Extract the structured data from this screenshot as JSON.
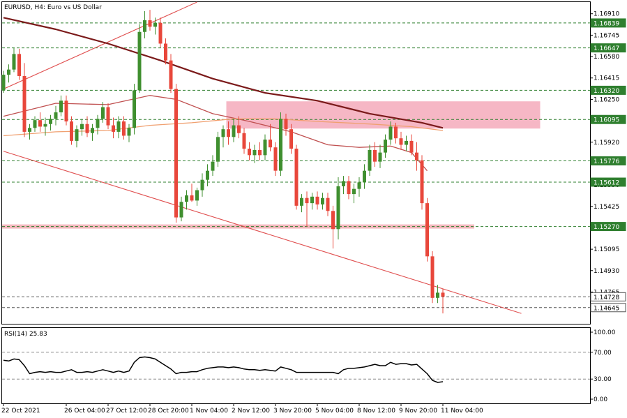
{
  "chart_data": {
    "type": "candlestick",
    "symbol": "EURUSD",
    "timeframe": "H4",
    "title": "EURUSD, H4:  Euro vs US Dollar",
    "colors": {
      "bull": "#3f8f2f",
      "bear": "#e8473b",
      "ma_slow": "#7b1a1a",
      "ma_mid": "#c05050",
      "ma_fast": "#f0a070",
      "trend_line": "#e05050",
      "level_line": "#2f7f2f",
      "level_tag": "#2f7f2f",
      "zone": "#f4aabb",
      "zone_line": "#f0a0a8",
      "rsi_line": "#000000"
    },
    "y_axis": {
      "min": 1.1452,
      "max": 1.17,
      "ticks": [
        "1.16910",
        "1.16745",
        "1.16580",
        "1.16415",
        "1.16250",
        "1.15920",
        "1.15590",
        "1.15425",
        "1.15095",
        "1.14930",
        "1.14765"
      ]
    },
    "levels": [
      {
        "value": 1.16839,
        "label": "1.16839"
      },
      {
        "value": 1.16647,
        "label": "1.16647"
      },
      {
        "value": 1.1632,
        "label": "1.16320"
      },
      {
        "value": 1.16095,
        "label": "1.16095"
      },
      {
        "value": 1.15776,
        "label": "1.15776"
      },
      {
        "value": 1.15612,
        "label": "1.15612"
      },
      {
        "value": 1.1527,
        "label": "1.15270"
      },
      {
        "value": 1.14728,
        "label": "1.14728"
      },
      {
        "value": 1.14645,
        "label": "1.14645"
      }
    ],
    "resistance_zone": {
      "from_bar": 43,
      "to_bar": 103,
      "low": 1.16025,
      "high": 1.16235
    },
    "support_line": {
      "from_bar": 0,
      "to_bar": 90,
      "value": 1.1527
    },
    "trend_lines": [
      {
        "x1": 0,
        "y1": 1.1633,
        "x2": 37,
        "y2": 1.17
      },
      {
        "x1": 0,
        "y1": 1.1585,
        "x2": 99,
        "y2": 1.146
      }
    ],
    "candles": [
      [
        1.1632,
        1.1647,
        1.163,
        1.1644
      ],
      [
        1.1644,
        1.1652,
        1.1638,
        1.1648
      ],
      [
        1.1648,
        1.1665,
        1.1646,
        1.166
      ],
      [
        1.166,
        1.1664,
        1.164,
        1.1643
      ],
      [
        1.1643,
        1.1653,
        1.1596,
        1.16
      ],
      [
        1.16,
        1.1606,
        1.1594,
        1.1603
      ],
      [
        1.1603,
        1.1612,
        1.16,
        1.1609
      ],
      [
        1.1609,
        1.1615,
        1.16,
        1.1604
      ],
      [
        1.1604,
        1.1611,
        1.1597,
        1.1606
      ],
      [
        1.1606,
        1.1613,
        1.1601,
        1.161
      ],
      [
        1.161,
        1.162,
        1.1605,
        1.1615
      ],
      [
        1.1615,
        1.1628,
        1.1612,
        1.1624
      ],
      [
        1.1624,
        1.1628,
        1.1605,
        1.1608
      ],
      [
        1.1608,
        1.1612,
        1.159,
        1.1593
      ],
      [
        1.1593,
        1.1605,
        1.1588,
        1.1602
      ],
      [
        1.1602,
        1.161,
        1.1597,
        1.1606
      ],
      [
        1.1606,
        1.1612,
        1.1596,
        1.1599
      ],
      [
        1.1599,
        1.1606,
        1.1593,
        1.1603
      ],
      [
        1.1603,
        1.1613,
        1.1598,
        1.161
      ],
      [
        1.161,
        1.1623,
        1.1607,
        1.1619
      ],
      [
        1.1619,
        1.1622,
        1.1602,
        1.1605
      ],
      [
        1.1605,
        1.1611,
        1.1595,
        1.16
      ],
      [
        1.16,
        1.1612,
        1.1595,
        1.1608
      ],
      [
        1.1608,
        1.1612,
        1.1594,
        1.1597
      ],
      [
        1.1597,
        1.1606,
        1.1592,
        1.1603
      ],
      [
        1.1603,
        1.1637,
        1.1598,
        1.1632
      ],
      [
        1.1632,
        1.1683,
        1.163,
        1.1677
      ],
      [
        1.1677,
        1.1693,
        1.1672,
        1.1686
      ],
      [
        1.1686,
        1.1694,
        1.1678,
        1.1681
      ],
      [
        1.1681,
        1.1688,
        1.1675,
        1.1684
      ],
      [
        1.1684,
        1.1688,
        1.1665,
        1.1668
      ],
      [
        1.1668,
        1.1672,
        1.1652,
        1.1655
      ],
      [
        1.1655,
        1.166,
        1.163,
        1.1633
      ],
      [
        1.1633,
        1.1637,
        1.153,
        1.1534
      ],
      [
        1.1534,
        1.155,
        1.1531,
        1.1546
      ],
      [
        1.1546,
        1.1555,
        1.154,
        1.1551
      ],
      [
        1.1551,
        1.156,
        1.1546,
        1.1547
      ],
      [
        1.1547,
        1.1557,
        1.1543,
        1.1555
      ],
      [
        1.1555,
        1.1568,
        1.155,
        1.1563
      ],
      [
        1.1563,
        1.1575,
        1.1558,
        1.157
      ],
      [
        1.157,
        1.1582,
        1.1566,
        1.1577
      ],
      [
        1.1577,
        1.16,
        1.1573,
        1.1596
      ],
      [
        1.1596,
        1.1605,
        1.1588,
        1.1602
      ],
      [
        1.1602,
        1.1608,
        1.159,
        1.1596
      ],
      [
        1.1596,
        1.161,
        1.1592,
        1.1605
      ],
      [
        1.1605,
        1.1612,
        1.1595,
        1.1599
      ],
      [
        1.1599,
        1.1603,
        1.1583,
        1.1587
      ],
      [
        1.1587,
        1.1592,
        1.1578,
        1.1582
      ],
      [
        1.1582,
        1.159,
        1.1576,
        1.1586
      ],
      [
        1.1586,
        1.1592,
        1.1578,
        1.1582
      ],
      [
        1.1582,
        1.1598,
        1.1578,
        1.1594
      ],
      [
        1.1594,
        1.1606,
        1.1585,
        1.1588
      ],
      [
        1.1588,
        1.1592,
        1.1566,
        1.157
      ],
      [
        1.157,
        1.1615,
        1.1566,
        1.161
      ],
      [
        1.161,
        1.1614,
        1.1597,
        1.1602
      ],
      [
        1.1602,
        1.1606,
        1.1583,
        1.1587
      ],
      [
        1.1587,
        1.159,
        1.154,
        1.1543
      ],
      [
        1.1543,
        1.1552,
        1.1538,
        1.1549
      ],
      [
        1.1549,
        1.1554,
        1.1527,
        1.1545
      ],
      [
        1.1545,
        1.1553,
        1.154,
        1.155
      ],
      [
        1.155,
        1.1554,
        1.154,
        1.1544
      ],
      [
        1.1544,
        1.1553,
        1.154,
        1.1549
      ],
      [
        1.1549,
        1.1553,
        1.1535,
        1.1539
      ],
      [
        1.1539,
        1.1543,
        1.151,
        1.1525
      ],
      [
        1.1525,
        1.1565,
        1.1517,
        1.1558
      ],
      [
        1.1558,
        1.1566,
        1.1552,
        1.1562
      ],
      [
        1.1562,
        1.1566,
        1.1548,
        1.1552
      ],
      [
        1.1552,
        1.156,
        1.1545,
        1.1556
      ],
      [
        1.1556,
        1.1565,
        1.155,
        1.1561
      ],
      [
        1.1561,
        1.1575,
        1.1556,
        1.157
      ],
      [
        1.157,
        1.159,
        1.1566,
        1.1586
      ],
      [
        1.1586,
        1.1592,
        1.1573,
        1.1577
      ],
      [
        1.1577,
        1.159,
        1.1572,
        1.1584
      ],
      [
        1.1584,
        1.1598,
        1.158,
        1.1594
      ],
      [
        1.1594,
        1.1608,
        1.159,
        1.1604
      ],
      [
        1.1604,
        1.1607,
        1.1591,
        1.1595
      ],
      [
        1.1595,
        1.16,
        1.1586,
        1.159
      ],
      [
        1.159,
        1.1597,
        1.1585,
        1.1593
      ],
      [
        1.1593,
        1.1598,
        1.1582,
        1.1584
      ],
      [
        1.1584,
        1.1592,
        1.157,
        1.1578
      ],
      [
        1.1578,
        1.1582,
        1.154,
        1.1545
      ],
      [
        1.1545,
        1.1549,
        1.15,
        1.1504
      ],
      [
        1.1504,
        1.1508,
        1.1468,
        1.1472
      ],
      [
        1.1472,
        1.1482,
        1.1468,
        1.1476
      ],
      [
        1.1476,
        1.1479,
        1.146,
        1.1473
      ]
    ],
    "moving_averages": [
      {
        "name": "ma_slow",
        "color_key": "ma_slow",
        "width": 2.2,
        "points": [
          [
            0,
            1.1688
          ],
          [
            10,
            1.1679
          ],
          [
            20,
            1.1668
          ],
          [
            30,
            1.1655
          ],
          [
            40,
            1.1641
          ],
          [
            50,
            1.163
          ],
          [
            60,
            1.1624
          ],
          [
            70,
            1.1614
          ],
          [
            80,
            1.1607
          ],
          [
            84,
            1.1603
          ]
        ]
      },
      {
        "name": "ma_mid",
        "color_key": "ma_mid",
        "width": 1.3,
        "points": [
          [
            0,
            1.1612
          ],
          [
            10,
            1.1622
          ],
          [
            20,
            1.1621
          ],
          [
            28,
            1.1628
          ],
          [
            33,
            1.1625
          ],
          [
            40,
            1.1614
          ],
          [
            47,
            1.1608
          ],
          [
            55,
            1.16
          ],
          [
            62,
            1.159
          ],
          [
            68,
            1.1588
          ],
          [
            74,
            1.1589
          ],
          [
            78,
            1.1584
          ],
          [
            81,
            1.157
          ]
        ]
      },
      {
        "name": "ma_fast",
        "color_key": "ma_fast",
        "width": 1.3,
        "points": [
          [
            0,
            1.1597
          ],
          [
            10,
            1.16
          ],
          [
            20,
            1.1601
          ],
          [
            28,
            1.1605
          ],
          [
            36,
            1.1607
          ],
          [
            44,
            1.161
          ],
          [
            52,
            1.161
          ],
          [
            60,
            1.1608
          ],
          [
            70,
            1.1606
          ],
          [
            78,
            1.1604
          ],
          [
            84,
            1.1601
          ]
        ]
      }
    ],
    "x_labels": [
      {
        "bar": 0,
        "label": "22 Oct 2021"
      },
      {
        "bar": 12,
        "label": "26 Oct 04:00"
      },
      {
        "bar": 20,
        "label": "27 Oct 12:00"
      },
      {
        "bar": 28,
        "label": "28 Oct 20:00"
      },
      {
        "bar": 36,
        "label": "1 Nov 04:00"
      },
      {
        "bar": 44,
        "label": "2 Nov 12:00"
      },
      {
        "bar": 52,
        "label": "3 Nov 20:00"
      },
      {
        "bar": 60,
        "label": "5 Nov 04:00"
      },
      {
        "bar": 68,
        "label": "8 Nov 12:00"
      },
      {
        "bar": 76,
        "label": "9 Nov 20:00"
      },
      {
        "bar": 84,
        "label": "11 Nov 04:00"
      }
    ],
    "rsi": {
      "label": "RSI(14) 25.83",
      "period": 14,
      "current": 25.83,
      "ylim": [
        0,
        100
      ],
      "ticks": [
        {
          "value": 100,
          "label": "100.00"
        },
        {
          "value": 70,
          "label": "70.00"
        },
        {
          "value": 30,
          "label": "30.00"
        },
        {
          "value": 0,
          "label": "0.00"
        }
      ],
      "values": [
        58,
        57,
        60,
        59,
        50,
        38,
        40,
        41,
        40,
        41,
        40,
        40,
        42,
        44,
        40,
        40,
        41,
        40,
        42,
        44,
        42,
        40,
        42,
        40,
        42,
        55,
        62,
        63,
        62,
        60,
        55,
        50,
        45,
        38,
        40,
        40,
        41,
        41,
        44,
        46,
        47,
        48,
        48,
        47,
        48,
        47,
        45,
        44,
        44,
        43,
        44,
        43,
        42,
        48,
        46,
        44,
        40,
        40,
        40,
        40,
        40,
        40,
        40,
        40,
        38,
        44,
        46,
        46,
        47,
        48,
        50,
        52,
        50,
        50,
        55,
        52,
        53,
        53,
        51,
        52,
        45,
        38,
        28,
        25,
        26
      ]
    }
  }
}
